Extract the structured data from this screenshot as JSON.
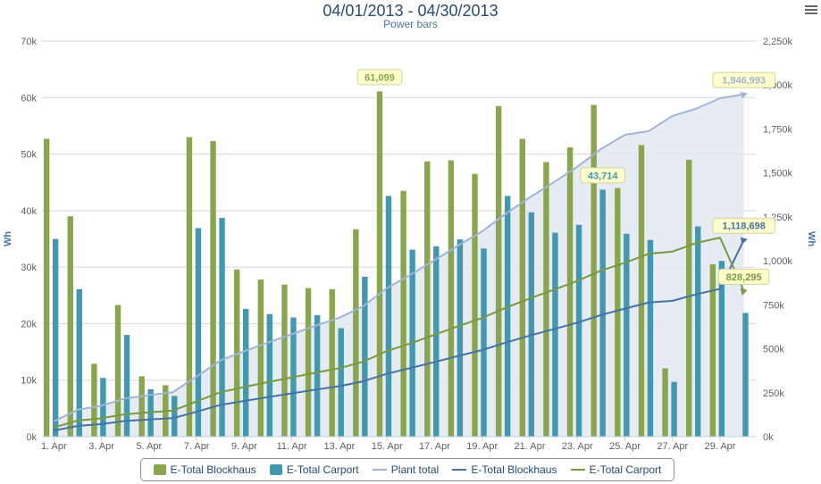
{
  "title": "04/01/2013 - 04/30/2013",
  "subtitle": "Power bars",
  "menu_icon": "hamburger-menu-icon",
  "chart_data": {
    "type": "bar",
    "title": "04/01/2013 - 04/30/2013",
    "subtitle": "Power bars",
    "categories": [
      "1. Apr",
      "2. Apr",
      "3. Apr",
      "4. Apr",
      "5. Apr",
      "6. Apr",
      "7. Apr",
      "8. Apr",
      "9. Apr",
      "10. Apr",
      "11. Apr",
      "12. Apr",
      "13. Apr",
      "14. Apr",
      "15. Apr",
      "16. Apr",
      "17. Apr",
      "18. Apr",
      "19. Apr",
      "20. Apr",
      "21. Apr",
      "22. Apr",
      "23. Apr",
      "24. Apr",
      "25. Apr",
      "26. Apr",
      "27. Apr",
      "28. Apr",
      "29. Apr",
      "30. Apr"
    ],
    "x_tick_labels": [
      "1. Apr",
      "3. Apr",
      "5. Apr",
      "7. Apr",
      "9. Apr",
      "11. Apr",
      "13. Apr",
      "15. Apr",
      "17. Apr",
      "19. Apr",
      "21. Apr",
      "23. Apr",
      "25. Apr",
      "27. Apr",
      "29. Apr"
    ],
    "y_left": {
      "label": "Wh",
      "min": 0,
      "max": 70000,
      "ticks": [
        "0k",
        "10k",
        "20k",
        "30k",
        "40k",
        "50k",
        "60k",
        "70k"
      ]
    },
    "y_right": {
      "label": "Wh",
      "min": 0,
      "max": 2250000,
      "ticks": [
        "0k",
        "250k",
        "500k",
        "750k",
        "1,000k",
        "1,250k",
        "1,500k",
        "1,750k",
        "2,000k",
        "2,250k"
      ]
    },
    "grid": true,
    "legend_position": "bottom",
    "series": [
      {
        "name": "E-Total Blockhaus",
        "kind": "column",
        "axis": "left",
        "color": "#89a54e",
        "values": [
          52700,
          39000,
          12900,
          23300,
          10700,
          9100,
          53000,
          52300,
          29600,
          27800,
          26900,
          26300,
          26100,
          36700,
          61099,
          43500,
          48700,
          48900,
          46500,
          58500,
          52700,
          48600,
          51200,
          58700,
          44000,
          51600,
          12100,
          49000,
          30500,
          0
        ]
      },
      {
        "name": "E-Total Carport",
        "kind": "column",
        "axis": "left",
        "color": "#4198af",
        "values": [
          35000,
          26100,
          10400,
          18000,
          8400,
          7200,
          36900,
          38700,
          22600,
          21700,
          21100,
          21500,
          19200,
          28300,
          42600,
          33100,
          33700,
          34900,
          33300,
          42600,
          39700,
          36100,
          37500,
          43714,
          35900,
          34800,
          9700,
          37200,
          31100,
          21900
        ]
      },
      {
        "name": "Plant total",
        "kind": "area",
        "axis": "right",
        "color": "#a0b5d6",
        "fill": "#e4e9f3",
        "values": [
          87700,
          152800,
          176100,
          217400,
          236500,
          252800,
          342700,
          433700,
          485900,
          535400,
          583400,
          631200,
          676500,
          741500,
          845200,
          921800,
          1004200,
          1088000,
          1167800,
          1268900,
          1361300,
          1446000,
          1534700,
          1636900,
          1716800,
          1738000,
          1824200,
          1865900,
          1925000,
          1946993
        ]
      },
      {
        "name": "E-Total Blockhaus",
        "kind": "line",
        "axis": "right",
        "color": "#4572a7",
        "values": [
          35000,
          61100,
          71500,
          89500,
          97900,
          105100,
          142000,
          180700,
          203300,
          225000,
          246100,
          267600,
          286800,
          315100,
          357700,
          390800,
          424500,
          459400,
          492700,
          535300,
          575000,
          611100,
          648600,
          692300,
          728200,
          763000,
          772700,
          809900,
          841000,
          1118698
        ]
      },
      {
        "name": "E-Total Carport",
        "kind": "line",
        "axis": "right",
        "color": "#7a9a3f",
        "values": [
          52700,
          91700,
          104600,
          127900,
          138600,
          147700,
          200700,
          253000,
          282600,
          310400,
          337300,
          363600,
          389700,
          426400,
          487500,
          531000,
          579700,
          628600,
          675100,
          733600,
          786300,
          834900,
          886100,
          944800,
          988800,
          1040400,
          1052500,
          1101500,
          1132000,
          828295
        ]
      }
    ],
    "data_labels": [
      {
        "text": "61,099",
        "series": "E-Total Blockhaus",
        "category": "15. Apr"
      },
      {
        "text": "43,714",
        "series": "E-Total Carport",
        "category": "24. Apr"
      },
      {
        "text": "1,946,993",
        "series": "Plant total",
        "category": "30. Apr"
      },
      {
        "text": "1,118,698",
        "series": "E-Total Blockhaus (line)",
        "category": "30. Apr"
      },
      {
        "text": "828,295",
        "series": "E-Total Carport (line)",
        "category": "30. Apr"
      }
    ]
  },
  "legend": {
    "items": [
      {
        "label": "E-Total Blockhaus",
        "symbol": "bar",
        "color": "#89a54e"
      },
      {
        "label": "E-Total Carport",
        "symbol": "bar",
        "color": "#4198af"
      },
      {
        "label": "Plant total",
        "symbol": "line",
        "color": "#a0b5d6"
      },
      {
        "label": "E-Total Blockhaus",
        "symbol": "line",
        "color": "#4572a7"
      },
      {
        "label": "E-Total Carport",
        "symbol": "line",
        "color": "#7a9a3f"
      }
    ]
  }
}
